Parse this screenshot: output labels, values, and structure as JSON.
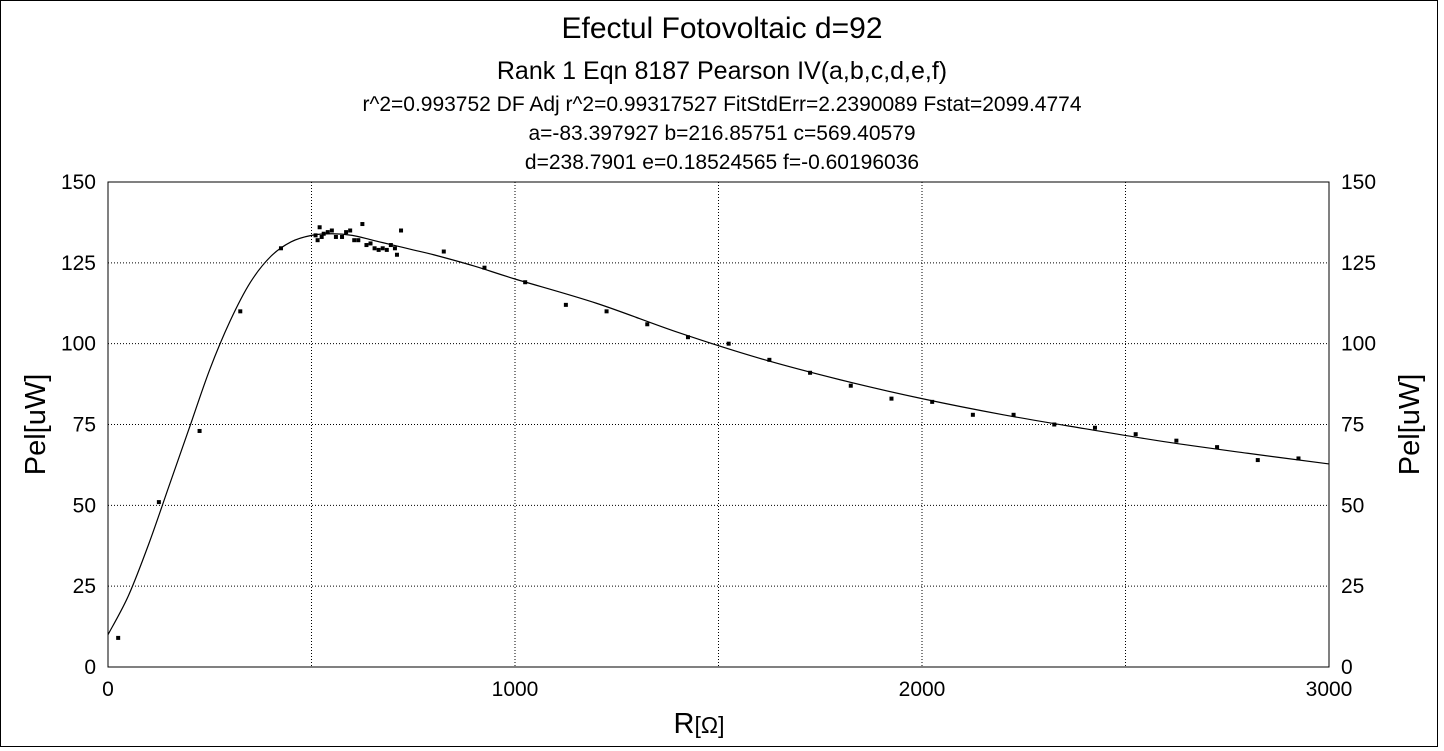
{
  "chart_data": {
    "type": "scatter",
    "title": "Efectul Fotovoltaic d=92",
    "subtitle": "Rank 1  Eqn 8187  Pearson IV(a,b,c,d,e,f)",
    "stats_lines": [
      "r^2=0.993752  DF Adj r^2=0.99317527  FitStdErr=2.2390089  Fstat=2099.4774",
      "a=-83.397927 b=216.85751 c=569.40579",
      "d=238.7901 e=0.18524565 f=-0.60196036"
    ],
    "xlabel": "R",
    "xunit": "[Ω]",
    "ylabel": "Pel[uW]",
    "ylabel_right": "Pel[uW]",
    "xlim": [
      0,
      3000
    ],
    "ylim": [
      0,
      150
    ],
    "xticks": [
      0,
      1000,
      2000,
      3000
    ],
    "yticks": [
      0,
      25,
      50,
      75,
      100,
      125,
      150
    ],
    "grid": "dotted",
    "series": [
      {
        "kind": "points",
        "x": [
          25,
          125,
          225,
          325,
          425,
          510,
          515,
          520,
          525,
          530,
          540,
          550,
          560,
          575,
          585,
          595,
          605,
          615,
          625,
          635,
          645,
          655,
          665,
          675,
          685,
          695,
          705,
          710,
          720,
          825,
          925,
          1025,
          1125,
          1225,
          1325,
          1425,
          1525,
          1625,
          1725,
          1825,
          1925,
          2025,
          2125,
          2225,
          2325,
          2425,
          2525,
          2625,
          2725,
          2825,
          2925
        ],
        "y": [
          9,
          51,
          73,
          110,
          129.5,
          133.5,
          132,
          136,
          133,
          134,
          134.5,
          135,
          133,
          133,
          134.5,
          135,
          132,
          132,
          137,
          130.5,
          131,
          129.5,
          129,
          129.5,
          129,
          130.5,
          129.5,
          127.5,
          135,
          128.5,
          123.5,
          119,
          112,
          110,
          106,
          102,
          100,
          95,
          91,
          87,
          83,
          82,
          78,
          78,
          75,
          74,
          72,
          70,
          68,
          64,
          64.5
        ]
      },
      {
        "kind": "fit",
        "x": [
          0,
          50,
          100,
          150,
          200,
          250,
          300,
          350,
          400,
          450,
          500,
          550,
          600,
          650,
          700,
          750,
          800,
          900,
          1000,
          1200,
          1400,
          1600,
          1800,
          2000,
          2200,
          2400,
          2600,
          2800,
          3000
        ],
        "y": [
          10,
          22,
          38,
          56,
          74,
          92,
          107,
          119,
          127,
          131.5,
          133.5,
          134,
          133.5,
          132,
          130.5,
          129,
          127.5,
          124,
          120,
          112.5,
          103.5,
          95.5,
          88.8,
          83,
          78,
          73.7,
          69.6,
          66.1,
          62.8
        ]
      }
    ]
  }
}
